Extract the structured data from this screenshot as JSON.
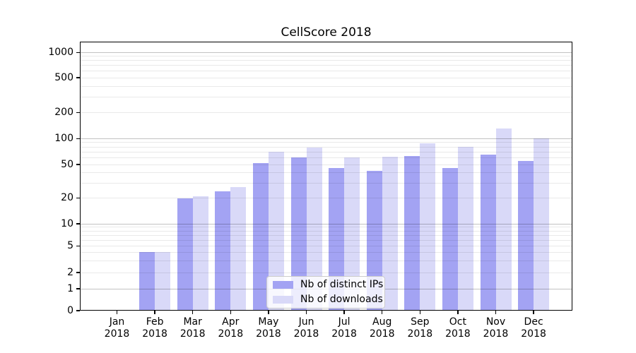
{
  "chart_data": {
    "type": "bar",
    "title": "CellScore 2018",
    "categories": [
      {
        "month": "Jan",
        "year": "2018"
      },
      {
        "month": "Feb",
        "year": "2018"
      },
      {
        "month": "Mar",
        "year": "2018"
      },
      {
        "month": "Apr",
        "year": "2018"
      },
      {
        "month": "May",
        "year": "2018"
      },
      {
        "month": "Jun",
        "year": "2018"
      },
      {
        "month": "Jul",
        "year": "2018"
      },
      {
        "month": "Aug",
        "year": "2018"
      },
      {
        "month": "Sep",
        "year": "2018"
      },
      {
        "month": "Oct",
        "year": "2018"
      },
      {
        "month": "Nov",
        "year": "2018"
      },
      {
        "month": "Dec",
        "year": "2018"
      }
    ],
    "series": [
      {
        "name": "Nb of distinct IPs",
        "color": "#a3a3f3",
        "values": [
          0,
          4,
          20,
          24,
          52,
          60,
          45,
          42,
          63,
          45,
          65,
          55
        ]
      },
      {
        "name": "Nb of downloads",
        "color": "#d9d9f8",
        "values": [
          0,
          4,
          21,
          27,
          70,
          78,
          60,
          62,
          88,
          80,
          130,
          100
        ]
      }
    ],
    "y_ticks": [
      0,
      1,
      2,
      5,
      10,
      20,
      50,
      100,
      200,
      500,
      1000
    ],
    "y_minor_gridlines": [
      2,
      3,
      4,
      5,
      6,
      7,
      8,
      9,
      20,
      30,
      40,
      50,
      60,
      70,
      80,
      90,
      200,
      300,
      400,
      500,
      600,
      700,
      800,
      900
    ],
    "y_major_gridlines": [
      1,
      10,
      100,
      1000
    ],
    "y_scale": "symlog",
    "ylim": [
      0,
      1340
    ],
    "xlabel": "",
    "ylabel": "",
    "grid": true,
    "legend_position": "lower-center",
    "axis_color": "#000000",
    "background_color": "#ffffff"
  }
}
